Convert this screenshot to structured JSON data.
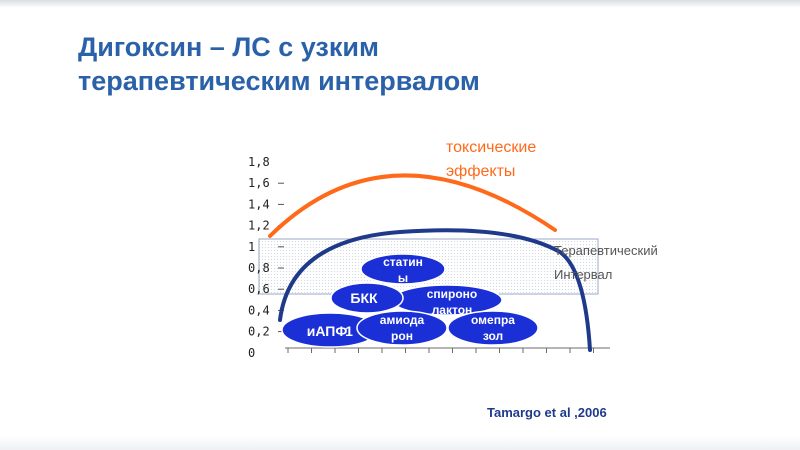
{
  "title": {
    "line1": "Дигоксин – ЛС с узким",
    "line2": "терапевтическим интервалом"
  },
  "toxic_label": {
    "line1": "токсические",
    "line2": "эффекты"
  },
  "therapeutic_label": {
    "line1": "Терапевтический",
    "line2": "Интервал"
  },
  "source": "Tamargo et al ,2006",
  "y_ticks": [
    "1,8",
    "1,6",
    "1,4",
    "1,2",
    "1",
    "0,8",
    "0,6",
    "0,4",
    "0,2",
    "0"
  ],
  "drugs": [
    {
      "lines": [
        "иАПФ"
      ]
    },
    {
      "lines": [
        "БКК"
      ]
    },
    {
      "lines": [
        "статин",
        "ы"
      ]
    },
    {
      "lines": [
        "спироно",
        "лактон"
      ]
    },
    {
      "lines": [
        "амиода",
        "рон"
      ]
    },
    {
      "lines": [
        "омепра",
        "зол"
      ]
    },
    {
      "lines": [
        "1"
      ]
    }
  ],
  "colors": {
    "title": "#2a61a8",
    "toxic_curve": "#ff6a1a",
    "therapeutic_curve": "#1f3a8a",
    "ellipse_fill": "#1a2fd6",
    "band_border": "#9aa7c4",
    "band_fill": "#f0f2f8"
  }
}
